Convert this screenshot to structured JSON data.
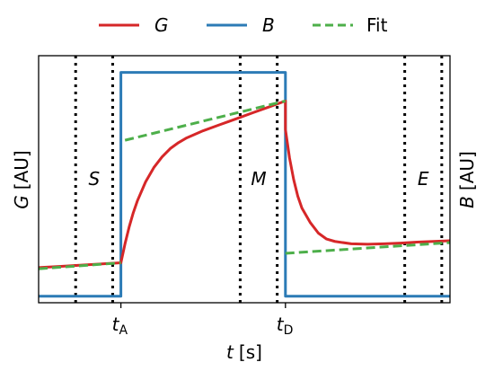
{
  "chart_data": {
    "type": "line",
    "legend": {
      "placement": "top",
      "items": [
        {
          "label": "G",
          "italic": true,
          "color": "#d62728",
          "style": "solid"
        },
        {
          "label": "B",
          "italic": true,
          "color": "#2c7bb6",
          "style": "solid"
        },
        {
          "label": "Fit",
          "italic": false,
          "color": "#4daf4a",
          "style": "dashed"
        }
      ]
    },
    "axes": {
      "x": {
        "symbol": "t",
        "unit": "s",
        "ticks": [
          {
            "label": "t",
            "sub": "A",
            "at": 1.0
          },
          {
            "label": "t",
            "sub": "D",
            "at": 3.0
          }
        ],
        "range": [
          0.0,
          5.0
        ]
      },
      "y_left": {
        "symbol": "G",
        "unit": "AU"
      },
      "y_right": {
        "symbol": "B",
        "unit": "AU"
      },
      "y_range": [
        0.0,
        1.0
      ]
    },
    "t_A": 1.0,
    "t_D": 3.0,
    "regions": [
      {
        "label": "S",
        "bounds": [
          0.45,
          0.9
        ]
      },
      {
        "label": "M",
        "bounds": [
          2.45,
          2.9
        ]
      },
      {
        "label": "E",
        "bounds": [
          4.45,
          4.9
        ]
      }
    ],
    "series": [
      {
        "name": "G",
        "points": [
          [
            0.0,
            0.14
          ],
          [
            0.25,
            0.145
          ],
          [
            0.5,
            0.15
          ],
          [
            0.75,
            0.155
          ],
          [
            0.98,
            0.16
          ],
          [
            1.0,
            0.16
          ],
          [
            1.05,
            0.24
          ],
          [
            1.1,
            0.31
          ],
          [
            1.15,
            0.37
          ],
          [
            1.2,
            0.42
          ],
          [
            1.3,
            0.5
          ],
          [
            1.4,
            0.56
          ],
          [
            1.5,
            0.605
          ],
          [
            1.6,
            0.64
          ],
          [
            1.7,
            0.665
          ],
          [
            1.8,
            0.685
          ],
          [
            2.0,
            0.715
          ],
          [
            2.2,
            0.74
          ],
          [
            2.4,
            0.765
          ],
          [
            2.6,
            0.79
          ],
          [
            2.8,
            0.815
          ],
          [
            3.0,
            0.84
          ],
          [
            3.0,
            0.72
          ],
          [
            3.05,
            0.6
          ],
          [
            3.1,
            0.51
          ],
          [
            3.15,
            0.44
          ],
          [
            3.2,
            0.39
          ],
          [
            3.3,
            0.33
          ],
          [
            3.4,
            0.285
          ],
          [
            3.5,
            0.26
          ],
          [
            3.6,
            0.25
          ],
          [
            3.8,
            0.24
          ],
          [
            4.0,
            0.238
          ],
          [
            4.2,
            0.24
          ],
          [
            4.4,
            0.243
          ],
          [
            4.6,
            0.247
          ],
          [
            4.8,
            0.25
          ],
          [
            5.0,
            0.253
          ]
        ]
      },
      {
        "name": "B",
        "points": [
          [
            0.0,
            0.02
          ],
          [
            1.0,
            0.02
          ],
          [
            1.0,
            0.96
          ],
          [
            3.0,
            0.96
          ],
          [
            3.0,
            0.02
          ],
          [
            5.0,
            0.02
          ]
        ]
      },
      {
        "name": "Fit",
        "segments": [
          [
            [
              0.0,
              0.135
            ],
            [
              1.0,
              0.16
            ]
          ],
          [
            [
              1.05,
              0.675
            ],
            [
              3.0,
              0.84
            ]
          ],
          [
            [
              3.0,
              0.2
            ],
            [
              5.0,
              0.245
            ]
          ]
        ]
      }
    ],
    "grid": false
  }
}
